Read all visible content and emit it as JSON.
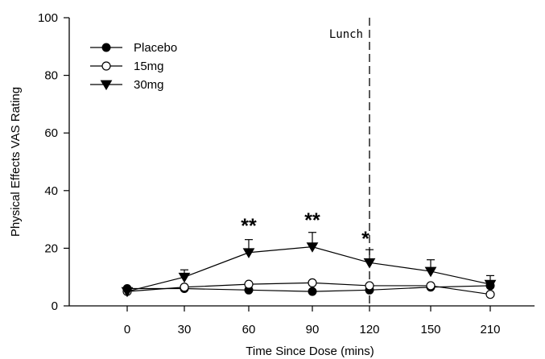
{
  "chart_data": {
    "type": "line",
    "xlabel": "Time Since Dose (mins)",
    "ylabel": "Physical Effects VAS Rating",
    "categories": [
      "0",
      "30",
      "60",
      "90",
      "120",
      "150",
      "210"
    ],
    "ylim": [
      0,
      100
    ],
    "yticks": [
      0,
      20,
      40,
      60,
      80,
      100
    ],
    "legend_position": "top-left",
    "series": [
      {
        "name": "Placebo",
        "marker": "filled-circle",
        "values": [
          6,
          6,
          5.5,
          5,
          5.5,
          6.5,
          7
        ],
        "errors": [
          0,
          0,
          0,
          0,
          0,
          0,
          0
        ]
      },
      {
        "name": "15mg",
        "marker": "open-circle",
        "values": [
          5,
          6.5,
          7.5,
          8,
          7,
          7,
          4
        ],
        "errors": [
          0,
          0,
          0,
          0,
          0,
          0,
          0
        ]
      },
      {
        "name": "30mg",
        "marker": "filled-triangle-down",
        "values": [
          5,
          10,
          18.5,
          20.5,
          15,
          12,
          7.5
        ],
        "errors": [
          0,
          2.5,
          4.5,
          5,
          4.5,
          4,
          3
        ]
      }
    ],
    "reference_line": {
      "x_category": "120",
      "label": "Lunch",
      "style": "dashed"
    },
    "significance_annotations": [
      {
        "x_category": "60",
        "text": "**"
      },
      {
        "x_category": "90",
        "text": "**"
      },
      {
        "x_category": "120",
        "text": "*"
      }
    ]
  }
}
